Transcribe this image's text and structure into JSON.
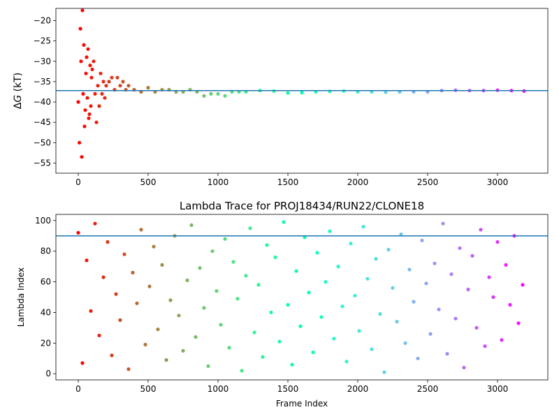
{
  "chart_data": [
    {
      "type": "scatter",
      "title": "",
      "xlabel": "",
      "ylabel": "ΔG (kT)",
      "ylabel_symbol": "Δ",
      "ylabel_var": "G",
      "ylabel_unit": " (kT)",
      "xlim": [
        -160,
        3360
      ],
      "ylim": [
        -57.5,
        -17.0
      ],
      "xticks": [
        0,
        500,
        1000,
        1500,
        2000,
        2500,
        3000
      ],
      "xtick_labels": [
        "0",
        "500",
        "1000",
        "1500",
        "2000",
        "2500",
        "3000"
      ],
      "yticks": [
        -55,
        -50,
        -45,
        -40,
        -35,
        -30,
        -25,
        -20
      ],
      "ytick_labels": [
        "−55",
        "−50",
        "−45",
        "−40",
        "−35",
        "−30",
        "−25",
        "−20"
      ],
      "colormap": "rainbow (red → violet with increasing frame index)",
      "reference_line": {
        "y": -37.2,
        "color": "#1f77b4"
      },
      "series": [
        {
          "x": [
            0,
            8,
            15,
            20,
            25,
            30,
            35,
            40,
            45,
            50,
            55,
            60,
            65,
            70,
            75,
            80,
            85,
            90,
            95,
            100,
            110,
            120,
            130,
            140,
            150,
            160,
            170,
            180,
            190,
            200,
            220,
            240,
            260,
            280,
            300,
            320,
            340,
            360,
            400,
            450,
            500,
            550,
            600,
            650,
            700,
            750,
            800,
            850,
            900,
            950,
            1000,
            1050,
            1100,
            1150,
            1200,
            1300,
            1400,
            1500,
            1600,
            1700,
            1800,
            1900,
            2000,
            2100,
            2200,
            2300,
            2400,
            2500,
            2600,
            2700,
            2800,
            2900,
            3000,
            3100,
            3190
          ],
          "y": [
            -40,
            -50,
            -22,
            -30,
            -53.5,
            -17.5,
            -38,
            -26,
            -46,
            -42,
            -33,
            -29,
            -39,
            -27,
            -44,
            -43,
            -31,
            -41,
            -34,
            -32,
            -30,
            -38,
            -45,
            -36,
            -41,
            -33,
            -38,
            -35,
            -39,
            -36,
            -35,
            -34,
            -37,
            -34,
            -36,
            -35,
            -37,
            -36,
            -37,
            -37.5,
            -36.5,
            -37.5,
            -37,
            -37,
            -37.5,
            -37.5,
            -37,
            -37.5,
            -38.5,
            -38,
            -38,
            -38.5,
            -37.5,
            -37.5,
            -37.5,
            -37.2,
            -37.3,
            -37.8,
            -37.7,
            -37.5,
            -37.4,
            -37.3,
            -37.5,
            -37.5,
            -37.6,
            -37.5,
            -37.5,
            -37.5,
            -37.2,
            -37.1,
            -37.2,
            -37.2,
            -37.1,
            -37.2,
            -37.3
          ]
        }
      ]
    },
    {
      "type": "scatter",
      "title": "Lambda Trace for PROJ18434/RUN22/CLONE18",
      "xlabel": "Frame Index",
      "ylabel": "Lambda Index",
      "xlim": [
        -160,
        3360
      ],
      "ylim": [
        -4,
        104
      ],
      "xticks": [
        0,
        500,
        1000,
        1500,
        2000,
        2500,
        3000
      ],
      "xtick_labels": [
        "0",
        "500",
        "1000",
        "1500",
        "2000",
        "2500",
        "3000"
      ],
      "yticks": [
        0,
        20,
        40,
        60,
        80,
        100
      ],
      "ytick_labels": [
        "0",
        "20",
        "40",
        "60",
        "80",
        "100"
      ],
      "colormap": "rainbow (red → violet with increasing frame index)",
      "reference_line": {
        "y": 90,
        "color": "#1f77b4"
      },
      "series": [
        {
          "x": [
            0,
            30,
            60,
            90,
            120,
            150,
            180,
            210,
            240,
            270,
            300,
            330,
            360,
            390,
            420,
            450,
            480,
            510,
            540,
            570,
            600,
            630,
            660,
            690,
            720,
            750,
            780,
            810,
            840,
            870,
            900,
            930,
            960,
            990,
            1020,
            1050,
            1080,
            1110,
            1140,
            1170,
            1200,
            1230,
            1260,
            1290,
            1320,
            1350,
            1380,
            1410,
            1440,
            1470,
            1500,
            1530,
            1560,
            1590,
            1620,
            1650,
            1680,
            1710,
            1740,
            1770,
            1800,
            1830,
            1860,
            1890,
            1920,
            1950,
            1980,
            2010,
            2040,
            2070,
            2100,
            2130,
            2160,
            2190,
            2220,
            2250,
            2280,
            2310,
            2340,
            2370,
            2400,
            2430,
            2460,
            2490,
            2520,
            2550,
            2580,
            2610,
            2640,
            2670,
            2700,
            2730,
            2760,
            2790,
            2820,
            2850,
            2880,
            2910,
            2940,
            2970,
            3000,
            3030,
            3060,
            3090,
            3120,
            3150,
            3180
          ],
          "y": [
            92,
            7,
            74,
            41,
            98,
            25,
            63,
            86,
            12,
            52,
            35,
            78,
            3,
            66,
            46,
            94,
            19,
            57,
            83,
            29,
            71,
            9,
            48,
            90,
            38,
            15,
            61,
            97,
            24,
            69,
            43,
            5,
            80,
            54,
            32,
            88,
            17,
            73,
            49,
            2,
            64,
            95,
            27,
            58,
            11,
            84,
            40,
            76,
            21,
            99,
            45,
            6,
            67,
            31,
            89,
            53,
            14,
            79,
            37,
            60,
            93,
            23,
            70,
            44,
            8,
            85,
            51,
            28,
            96,
            62,
            16,
            75,
            39,
            1,
            81,
            56,
            34,
            91,
            20,
            68,
            47,
            10,
            87,
            59,
            26,
            72,
            42,
            98,
            13,
            65,
            36,
            82,
            4,
            55,
            77,
            30,
            94,
            18,
            63,
            50,
            86,
            22,
            71,
            45,
            90,
            33,
            58
          ]
        }
      ]
    }
  ]
}
